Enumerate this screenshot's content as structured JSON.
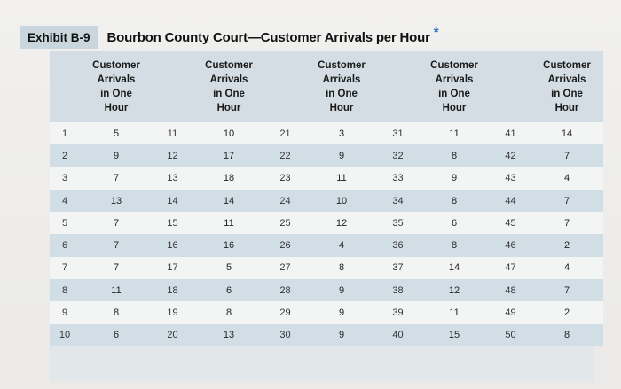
{
  "header": {
    "exhibit_label": "Exhibit B-9",
    "title": "Bourbon County Court—Customer Arrivals per Hour",
    "footnote_mark": "*"
  },
  "table": {
    "column_header": "Customer Arrivals in One Hour",
    "column_header_lines": [
      "Customer",
      "Arrivals",
      "in One",
      "Hour"
    ],
    "rows": [
      [
        1,
        5,
        11,
        10,
        21,
        3,
        31,
        11,
        41,
        14
      ],
      [
        2,
        9,
        12,
        17,
        22,
        9,
        32,
        8,
        42,
        7
      ],
      [
        3,
        7,
        13,
        18,
        23,
        11,
        33,
        9,
        43,
        4
      ],
      [
        4,
        13,
        14,
        14,
        24,
        10,
        34,
        8,
        44,
        7
      ],
      [
        5,
        7,
        15,
        11,
        25,
        12,
        35,
        6,
        45,
        7
      ],
      [
        6,
        7,
        16,
        16,
        26,
        4,
        36,
        8,
        46,
        2
      ],
      [
        7,
        7,
        17,
        5,
        27,
        8,
        37,
        14,
        47,
        4
      ],
      [
        8,
        11,
        18,
        6,
        28,
        9,
        38,
        12,
        48,
        7
      ],
      [
        9,
        8,
        19,
        8,
        29,
        9,
        39,
        11,
        49,
        2
      ],
      [
        10,
        6,
        20,
        13,
        30,
        9,
        40,
        15,
        50,
        8
      ]
    ]
  },
  "colors": {
    "header_bg": "#d3dde3",
    "row_light": "#f3f4f4",
    "row_shaded": "#d2dee5",
    "exhibit_bg": "#c9d6de",
    "star": "#2b78c4"
  }
}
